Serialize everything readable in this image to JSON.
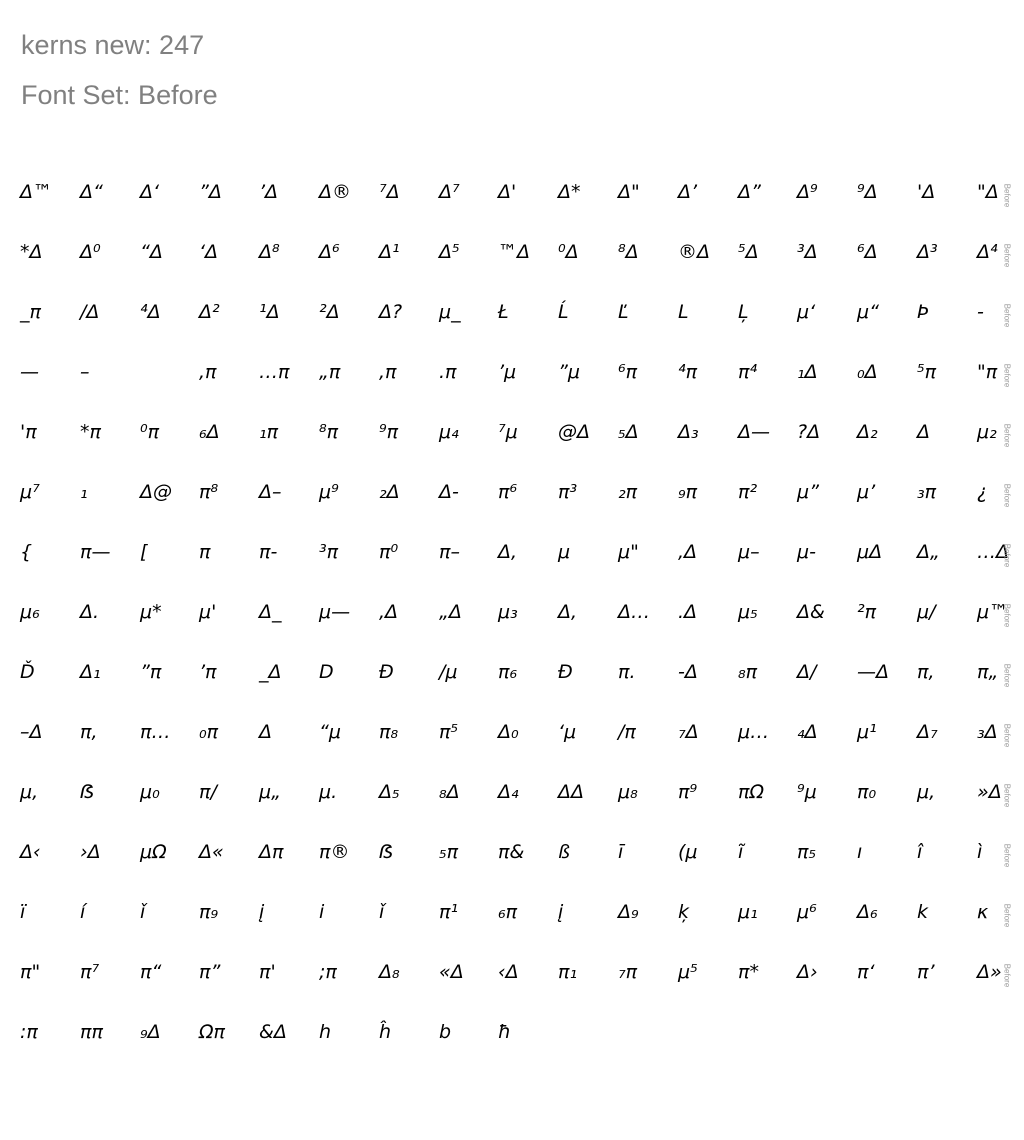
{
  "header": {
    "kerns_line": "kerns new: 247",
    "fontset_line": "Font Set: Before"
  },
  "row_tag": "Before",
  "rows": [
    [
      "Δ™",
      "Δ“",
      "Δ‘",
      "”Δ",
      "’Δ",
      "Δ®",
      "⁷Δ",
      "Δ⁷",
      "Δ'",
      "Δ*",
      "Δ\"",
      "Δ’",
      "Δ”",
      "Δ⁹",
      "⁹Δ",
      "'Δ",
      "\"Δ"
    ],
    [
      "*Δ",
      "Δ⁰",
      "“Δ",
      "‘Δ",
      "Δ⁸",
      "Δ⁶",
      "Δ¹",
      "Δ⁵",
      "™Δ",
      "⁰Δ",
      "⁸Δ",
      "®Δ",
      "⁵Δ",
      "³Δ",
      "⁶Δ",
      "Δ³",
      "Δ⁴"
    ],
    [
      "_π",
      "/Δ",
      "⁴Δ",
      "Δ²",
      "¹Δ",
      "²Δ",
      "Δ?",
      "μ_",
      "Ł",
      "Ĺ",
      "Ľ",
      "L",
      "Ļ",
      "μ‘",
      "μ“",
      "Þ",
      "-"
    ],
    [
      "—",
      "–",
      "",
      "‚π",
      "…π",
      "„π",
      "‚π",
      ".π",
      "’μ",
      "”μ",
      "⁶π",
      "⁴π",
      "π⁴",
      "₁Δ",
      "₀Δ",
      "⁵π",
      "\"π"
    ],
    [
      "'π",
      "*π",
      "⁰π",
      "₆Δ",
      "₁π",
      "⁸π",
      "⁹π",
      "μ₄",
      "⁷μ",
      "@Δ",
      "₅Δ",
      "Δ₃",
      "Δ—",
      "?Δ",
      "Δ₂",
      "Δ",
      "μ₂"
    ],
    [
      "μ⁷",
      "₁",
      "Δ@",
      "π⁸",
      "Δ–",
      "μ⁹",
      "₂Δ",
      "Δ-",
      "π⁶",
      "π³",
      "₂π",
      "₉π",
      "π²",
      "μ”",
      "μ’",
      "₃π",
      "¿"
    ],
    [
      "{",
      "π—",
      "[",
      "π",
      "π-",
      "³π",
      "π⁰",
      "π–",
      "Δ,",
      "μ",
      "μ\"",
      "‚Δ",
      "μ–",
      "μ-",
      "μΔ",
      "Δ„",
      "…Δ"
    ],
    [
      "μ₆",
      "Δ.",
      "μ*",
      "μ'",
      "Δ_",
      "μ—",
      "‚Δ",
      "„Δ",
      "μ₃",
      "Δ‚",
      "Δ…",
      ".Δ",
      "μ₅",
      "Δ&",
      "²π",
      "μ/",
      "μ™"
    ],
    [
      "Ď",
      "Δ₁",
      "”π",
      "’π",
      "_Δ",
      "D",
      "Đ",
      "/μ",
      "π₆",
      "Đ",
      "π.",
      "-Δ",
      "₈π",
      "Δ/",
      "—Δ",
      "π‚",
      "π„"
    ],
    [
      "–Δ",
      "π,",
      "π…",
      "₀π",
      "Δ",
      "“μ",
      "π₈",
      "π⁵",
      "Δ₀",
      "‘μ",
      "/π",
      "₇Δ",
      "μ…",
      "₄Δ",
      "μ¹",
      "Δ₇",
      "₃Δ"
    ],
    [
      "μ‚",
      "ẞ",
      "μ₀",
      "π/",
      "μ„",
      "μ.",
      "Δ₅",
      "₈Δ",
      "Δ₄",
      "ΔΔ",
      "μ₈",
      "π⁹",
      "πΩ",
      "⁹μ",
      "π₀",
      "μ,",
      "»Δ"
    ],
    [
      "Δ‹",
      "›Δ",
      "μΩ",
      "Δ«",
      "Δπ",
      "π®",
      "ẞ",
      "₅π",
      "π&",
      "ß",
      "ī",
      "(μ",
      "ĩ",
      "π₅",
      "ı",
      "î",
      "ì"
    ],
    [
      "ï",
      "í",
      "ǐ",
      "π₉",
      "į",
      "i",
      "ǐ",
      "π¹",
      "₆π",
      "į",
      "Δ₉",
      "ķ",
      "μ₁",
      "μ⁶",
      "Δ₆",
      "k",
      "κ"
    ],
    [
      "π\"",
      "π⁷",
      "π“",
      "π”",
      "π'",
      ";π",
      "Δ₈",
      "«Δ",
      "‹Δ",
      "π₁",
      "₇π",
      "μ⁵",
      "π*",
      "Δ›",
      "π‘",
      "π’",
      "Δ»"
    ],
    [
      ":π",
      "ππ",
      "₉Δ",
      "Ωπ",
      "&Δ",
      "h",
      "ĥ",
      "b",
      "ħ"
    ]
  ]
}
